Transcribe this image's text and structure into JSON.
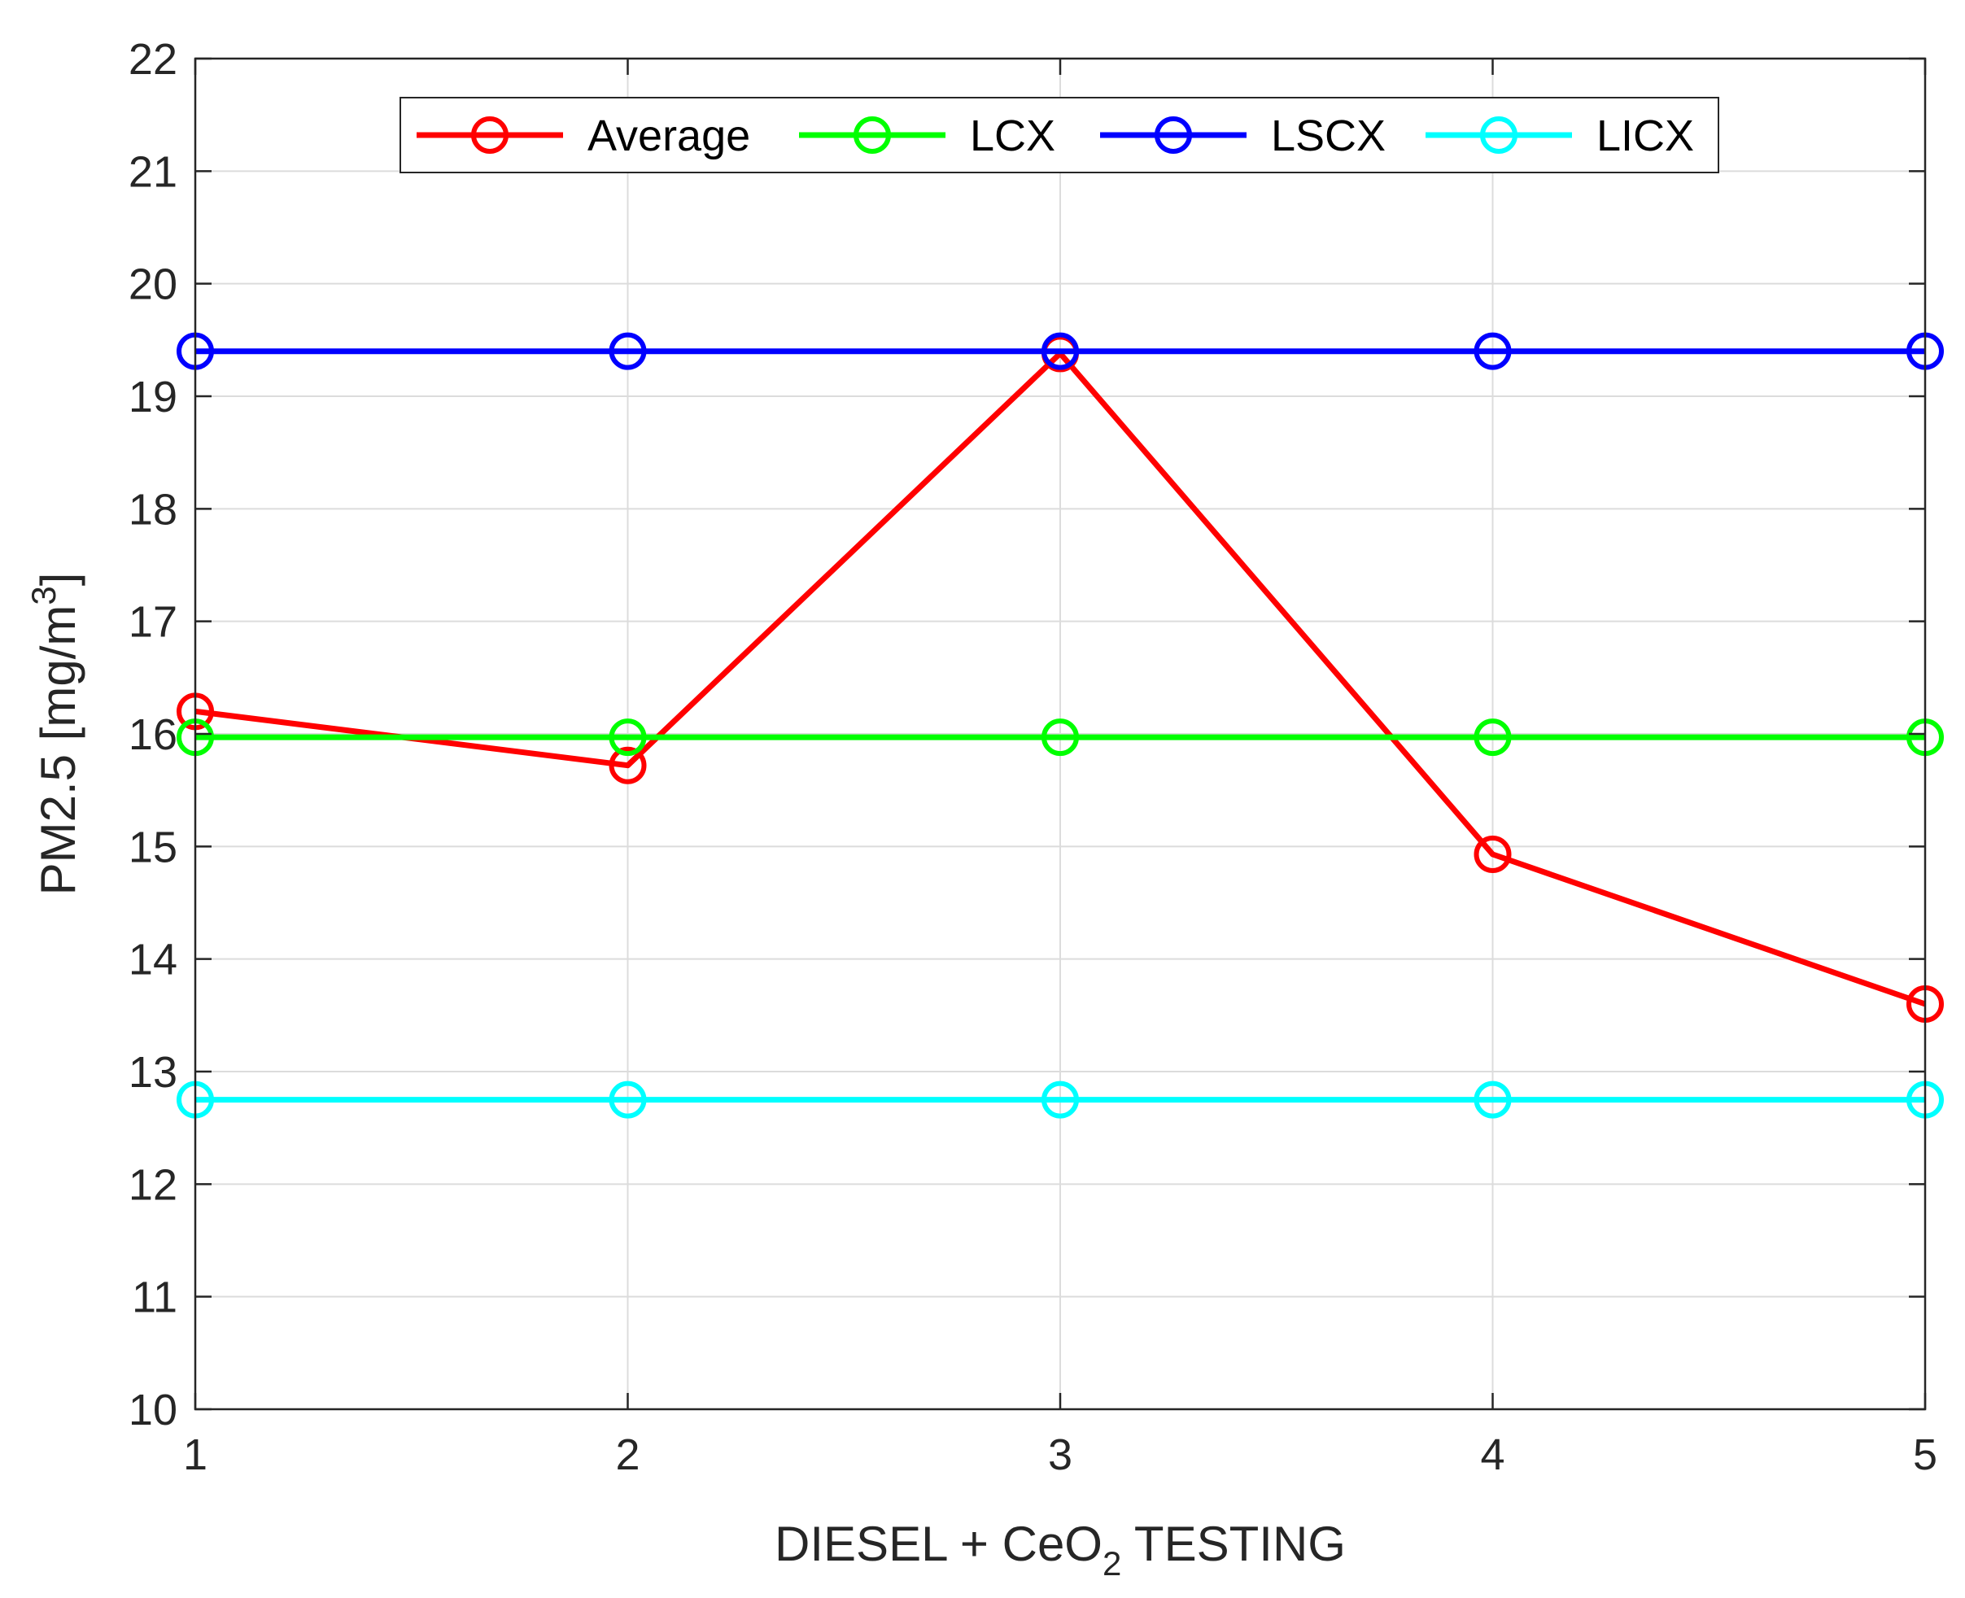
{
  "chart_data": {
    "type": "line",
    "title": "",
    "xlabel": "DIESEL + CeO",
    "xlabel_sub": "2",
    "xlabel_tail": " TESTING",
    "ylabel": "PM2.5 [mg/m",
    "ylabel_sup": "3",
    "ylabel_tail": "]",
    "x": [
      1,
      2,
      3,
      4,
      5
    ],
    "xlim": [
      1,
      5
    ],
    "ylim": [
      10,
      22
    ],
    "xticks": [
      1,
      2,
      3,
      4,
      5
    ],
    "xtick_labels": [
      "1",
      "2",
      "3",
      "4",
      "5"
    ],
    "yticks": [
      10,
      11,
      12,
      13,
      14,
      15,
      16,
      17,
      18,
      19,
      20,
      21,
      22
    ],
    "ytick_labels": [
      "10",
      "11",
      "12",
      "13",
      "14",
      "15",
      "16",
      "17",
      "18",
      "19",
      "20",
      "21",
      "22"
    ],
    "grid": true,
    "legend_position": "top-center",
    "series": [
      {
        "name": "Average",
        "color": "#ff0000",
        "values": [
          16.2,
          15.72,
          19.38,
          14.93,
          13.6
        ]
      },
      {
        "name": "LCX",
        "color": "#00ff00",
        "values": [
          15.97,
          15.97,
          15.97,
          15.97,
          15.97
        ]
      },
      {
        "name": "LSCX",
        "color": "#0000ff",
        "values": [
          19.4,
          19.4,
          19.4,
          19.4,
          19.4
        ]
      },
      {
        "name": "LICX",
        "color": "#00ffff",
        "values": [
          12.75,
          12.75,
          12.75,
          12.75,
          12.75
        ]
      }
    ]
  }
}
